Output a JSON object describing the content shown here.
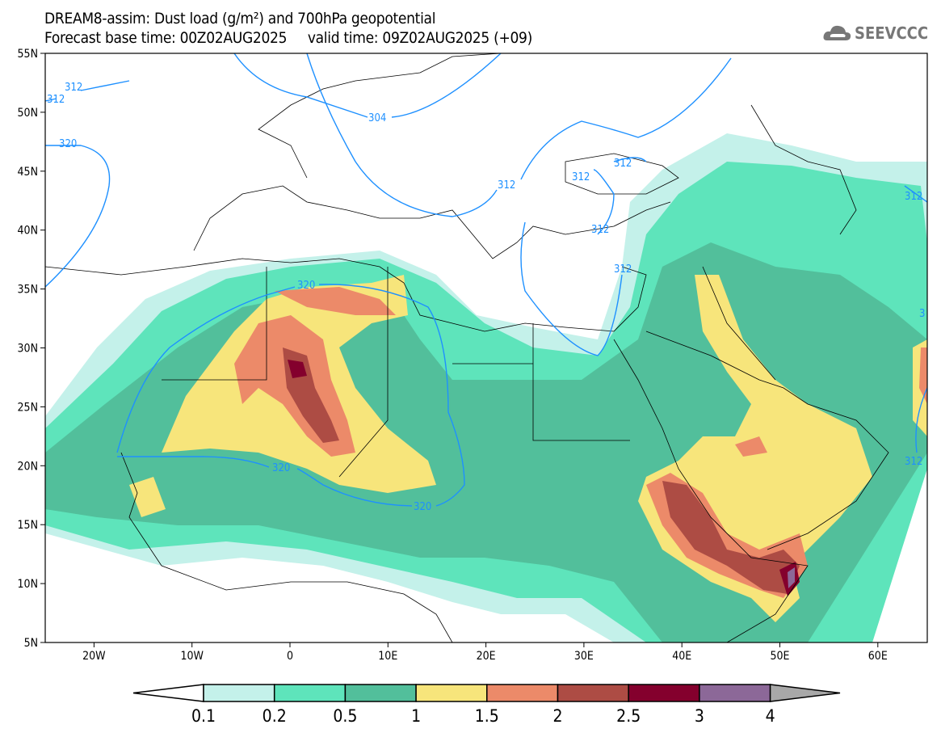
{
  "title": {
    "line1": "DREAM8-assim: Dust load (g/m²) and 700hPa geopotential",
    "line2": "Forecast base time: 00Z02AUG2025     valid time: 09Z02AUG2025 (+09)"
  },
  "logo": {
    "text": "SEEVCCC",
    "icon": "cloud-icon"
  },
  "axes": {
    "lat_labels": [
      "55N",
      "50N",
      "45N",
      "40N",
      "35N",
      "30N",
      "25N",
      "20N",
      "15N",
      "10N",
      "5N"
    ],
    "lon_labels": [
      "20W",
      "10W",
      "0",
      "10E",
      "20E",
      "30E",
      "40E",
      "50E",
      "60E"
    ]
  },
  "contour_labels": {
    "c312a": "312",
    "c312b": "312",
    "c320a": "320",
    "c304": "304",
    "c312c": "312",
    "c312d": "312",
    "c312e": "312",
    "c312f": "312",
    "c312g": "312",
    "c320b": "320",
    "c320c": "320",
    "c320d": "320",
    "c312h": "312",
    "c312i": "312",
    "c3": "3"
  },
  "legend": {
    "labels": [
      "0.1",
      "0.2",
      "0.5",
      "1",
      "1.5",
      "2",
      "2.5",
      "3",
      "4"
    ],
    "colors": [
      "#c4f1ea",
      "#5ee4bb",
      "#52bf9b",
      "#f7e57b",
      "#ec8a69",
      "#ad4c44",
      "#84002d",
      "#8c6898",
      "#a8a8a8"
    ]
  },
  "contour_color": "#1e90ff"
}
